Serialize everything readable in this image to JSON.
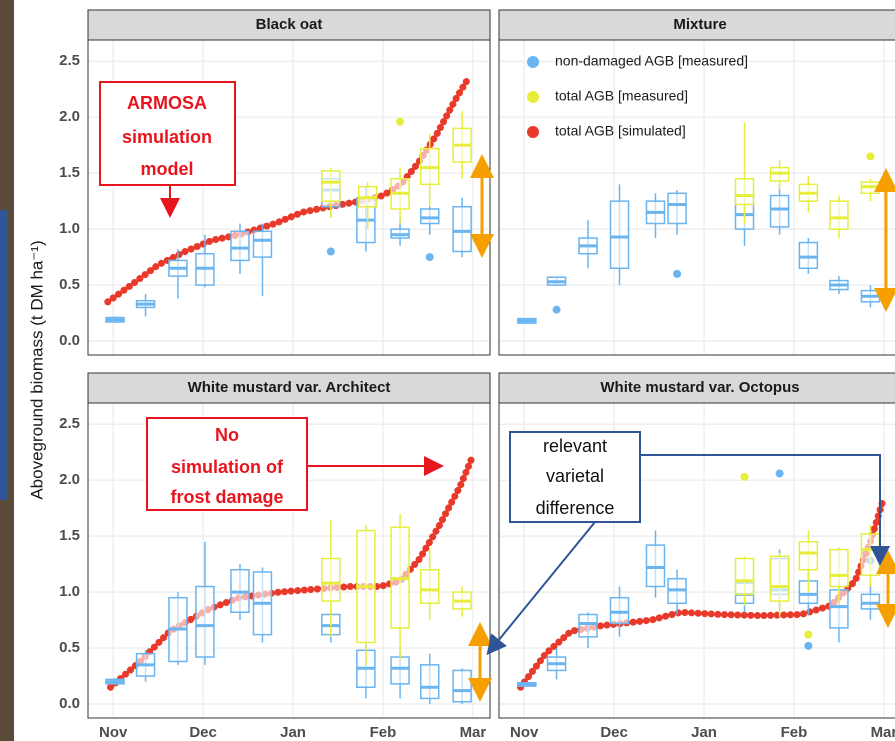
{
  "chart_data": {
    "type": "boxplot",
    "y_label": "Aboveground biomass (t DM ha⁻¹)",
    "xlim": [
      10.72,
      15.19
    ],
    "xticks": [
      {
        "value": 11,
        "label": "Nov"
      },
      {
        "value": 12,
        "label": "Dec"
      },
      {
        "value": 13,
        "label": "Jan"
      },
      {
        "value": 14,
        "label": "Feb"
      },
      {
        "value": 15,
        "label": "Mar"
      }
    ],
    "ylim": [
      -0.125,
      2.69
    ],
    "yticks": [
      {
        "value": 0,
        "label": "0.0"
      },
      0.5,
      {
        "value": 1,
        "label": "1.0"
      },
      1.5,
      {
        "value": 2,
        "label": "2.0"
      },
      2.5
    ],
    "grid": true,
    "series": [
      {
        "name": "non-damaged AGB [measured]",
        "color": "#6ab4f0"
      },
      {
        "name": "total AGB [measured]",
        "color": "#e6ee3a"
      },
      {
        "name": "total AGB [simulated]",
        "color": "#e8392b"
      }
    ],
    "panels": [
      {
        "title": "Black oat",
        "boxes": [
          [
            {
              "x": 11.02,
              "low": 0.16,
              "q1": 0.17,
              "median": 0.19,
              "q3": 0.21,
              "high": 0.22,
              "outliers": []
            },
            {
              "x": 11.36,
              "low": 0.22,
              "q1": 0.3,
              "median": 0.33,
              "q3": 0.36,
              "high": 0.42,
              "outliers": []
            },
            {
              "x": 11.72,
              "low": 0.38,
              "q1": 0.58,
              "median": 0.65,
              "q3": 0.72,
              "high": 0.82,
              "outliers": []
            },
            {
              "x": 12.02,
              "low": 0.48,
              "q1": 0.5,
              "median": 0.65,
              "q3": 0.78,
              "high": 0.95,
              "outliers": []
            },
            {
              "x": 12.41,
              "low": 0.6,
              "q1": 0.72,
              "median": 0.83,
              "q3": 0.98,
              "high": 1.05,
              "outliers": []
            },
            {
              "x": 12.66,
              "low": 0.4,
              "q1": 0.75,
              "median": 0.9,
              "q3": 0.98,
              "high": 1.05,
              "outliers": []
            },
            {
              "x": 13.42,
              "low": 1.1,
              "q1": 1.2,
              "median": 1.35,
              "q3": 1.45,
              "high": 1.5,
              "outliers": [
                0.8
              ]
            },
            {
              "x": 13.81,
              "low": 0.8,
              "q1": 0.88,
              "median": 1.08,
              "q3": 1.28,
              "high": 1.38,
              "outliers": []
            },
            {
              "x": 14.19,
              "low": 0.85,
              "q1": 0.92,
              "median": 0.95,
              "q3": 1.0,
              "high": 1.1,
              "outliers": []
            },
            {
              "x": 14.52,
              "low": 0.95,
              "q1": 1.05,
              "median": 1.1,
              "q3": 1.18,
              "high": 1.25,
              "outliers": [
                0.75
              ]
            },
            {
              "x": 14.88,
              "low": 0.75,
              "q1": 0.8,
              "median": 0.98,
              "q3": 1.2,
              "high": 1.28,
              "outliers": []
            }
          ],
          [
            {
              "x": 13.42,
              "low": 1.1,
              "q1": 1.25,
              "median": 1.42,
              "q3": 1.52,
              "high": 1.55,
              "outliers": []
            },
            {
              "x": 13.83,
              "low": 1.0,
              "q1": 1.2,
              "median": 1.28,
              "q3": 1.38,
              "high": 1.42,
              "outliers": []
            },
            {
              "x": 14.19,
              "low": 1.05,
              "q1": 1.18,
              "median": 1.32,
              "q3": 1.45,
              "high": 1.55,
              "outliers": [
                1.96
              ]
            },
            {
              "x": 14.52,
              "low": 1.2,
              "q1": 1.4,
              "median": 1.55,
              "q3": 1.72,
              "high": 1.85,
              "outliers": []
            },
            {
              "x": 14.88,
              "low": 1.45,
              "q1": 1.6,
              "median": 1.75,
              "q3": 1.9,
              "high": 2.05,
              "outliers": []
            }
          ]
        ],
        "simulated": {
          "x": [
            10.94,
            11.2,
            11.5,
            11.8,
            12.1,
            12.4,
            12.8,
            13.1,
            13.4,
            13.75,
            14.0,
            14.2,
            14.4,
            14.6,
            14.8,
            14.95
          ],
          "values": [
            0.35,
            0.5,
            0.68,
            0.8,
            0.9,
            0.95,
            1.05,
            1.15,
            1.2,
            1.25,
            1.3,
            1.4,
            1.6,
            1.85,
            2.15,
            2.35
          ]
        }
      },
      {
        "title": "Mixture",
        "boxes": [
          [
            {
              "x": 11.03,
              "low": 0.16,
              "q1": 0.16,
              "median": 0.18,
              "q3": 0.2,
              "high": 0.2,
              "outliers": []
            },
            {
              "x": 11.36,
              "low": 0.5,
              "q1": 0.5,
              "median": 0.53,
              "q3": 0.57,
              "high": 0.57,
              "outliers": [
                0.28
              ]
            },
            {
              "x": 11.71,
              "low": 0.65,
              "q1": 0.78,
              "median": 0.85,
              "q3": 0.92,
              "high": 1.08,
              "outliers": []
            },
            {
              "x": 12.06,
              "low": 0.5,
              "q1": 0.65,
              "median": 0.93,
              "q3": 1.25,
              "high": 1.4,
              "outliers": []
            },
            {
              "x": 12.46,
              "low": 0.92,
              "q1": 1.05,
              "median": 1.15,
              "q3": 1.25,
              "high": 1.32,
              "outliers": []
            },
            {
              "x": 12.7,
              "low": 0.95,
              "q1": 1.05,
              "median": 1.22,
              "q3": 1.32,
              "high": 1.35,
              "outliers": [
                0.6
              ]
            },
            {
              "x": 13.45,
              "low": 0.85,
              "q1": 1.0,
              "median": 1.13,
              "q3": 1.3,
              "high": 1.42,
              "outliers": []
            },
            {
              "x": 13.84,
              "low": 0.95,
              "q1": 1.02,
              "median": 1.18,
              "q3": 1.3,
              "high": 1.4,
              "outliers": []
            },
            {
              "x": 14.16,
              "low": 0.6,
              "q1": 0.65,
              "median": 0.75,
              "q3": 0.88,
              "high": 0.92,
              "outliers": []
            },
            {
              "x": 14.5,
              "low": 0.42,
              "q1": 0.46,
              "median": 0.5,
              "q3": 0.54,
              "high": 0.58,
              "outliers": []
            },
            {
              "x": 14.85,
              "low": 0.3,
              "q1": 0.35,
              "median": 0.4,
              "q3": 0.45,
              "high": 0.5,
              "outliers": []
            }
          ],
          [
            {
              "x": 13.45,
              "low": 1.05,
              "q1": 1.22,
              "median": 1.3,
              "q3": 1.45,
              "high": 1.95,
              "outliers": []
            },
            {
              "x": 13.84,
              "low": 1.35,
              "q1": 1.43,
              "median": 1.5,
              "q3": 1.55,
              "high": 1.62,
              "outliers": []
            },
            {
              "x": 14.16,
              "low": 1.15,
              "q1": 1.25,
              "median": 1.32,
              "q3": 1.4,
              "high": 1.48,
              "outliers": []
            },
            {
              "x": 14.5,
              "low": 0.92,
              "q1": 1.0,
              "median": 1.1,
              "q3": 1.25,
              "high": 1.3,
              "outliers": []
            },
            {
              "x": 14.85,
              "low": 1.25,
              "q1": 1.32,
              "median": 1.38,
              "q3": 1.42,
              "high": 1.45,
              "outliers": [
                1.65
              ]
            }
          ]
        ]
      },
      {
        "title": "White mustard var. Architect",
        "boxes": [
          [
            {
              "x": 11.02,
              "low": 0.17,
              "q1": 0.18,
              "median": 0.2,
              "q3": 0.22,
              "high": 0.23,
              "outliers": []
            },
            {
              "x": 11.36,
              "low": 0.2,
              "q1": 0.25,
              "median": 0.35,
              "q3": 0.45,
              "high": 0.48,
              "outliers": []
            },
            {
              "x": 11.72,
              "low": 0.35,
              "q1": 0.38,
              "median": 0.67,
              "q3": 0.95,
              "high": 1.0,
              "outliers": []
            },
            {
              "x": 12.02,
              "low": 0.35,
              "q1": 0.42,
              "median": 0.7,
              "q3": 1.05,
              "high": 1.45,
              "outliers": []
            },
            {
              "x": 12.41,
              "low": 0.75,
              "q1": 0.82,
              "median": 1.0,
              "q3": 1.2,
              "high": 1.25,
              "outliers": []
            },
            {
              "x": 12.66,
              "low": 0.55,
              "q1": 0.62,
              "median": 0.9,
              "q3": 1.18,
              "high": 1.22,
              "outliers": []
            },
            {
              "x": 13.42,
              "low": 0.55,
              "q1": 0.62,
              "median": 0.7,
              "q3": 0.8,
              "high": 0.85,
              "outliers": []
            },
            {
              "x": 13.81,
              "low": 0.05,
              "q1": 0.15,
              "median": 0.32,
              "q3": 0.48,
              "high": 0.58,
              "outliers": []
            },
            {
              "x": 14.19,
              "low": 0.05,
              "q1": 0.18,
              "median": 0.32,
              "q3": 0.42,
              "high": 0.48,
              "outliers": []
            },
            {
              "x": 14.52,
              "low": 0,
              "q1": 0.05,
              "median": 0.15,
              "q3": 0.35,
              "high": 0.45,
              "outliers": []
            },
            {
              "x": 14.88,
              "low": 0,
              "q1": 0.02,
              "median": 0.12,
              "q3": 0.3,
              "high": 0.32,
              "outliers": []
            }
          ],
          [
            {
              "x": 13.42,
              "low": 0.6,
              "q1": 0.92,
              "median": 1.08,
              "q3": 1.3,
              "high": 1.65,
              "outliers": []
            },
            {
              "x": 13.81,
              "low": 0.35,
              "q1": 0.55,
              "median": 1.05,
              "q3": 1.55,
              "high": 1.6,
              "outliers": []
            },
            {
              "x": 14.19,
              "low": 0.4,
              "q1": 0.68,
              "median": 1.12,
              "q3": 1.58,
              "high": 1.7,
              "outliers": []
            },
            {
              "x": 14.52,
              "low": 0.75,
              "q1": 0.9,
              "median": 1.02,
              "q3": 1.2,
              "high": 1.4,
              "outliers": []
            },
            {
              "x": 14.88,
              "low": 0.78,
              "q1": 0.85,
              "median": 0.92,
              "q3": 1.0,
              "high": 1.05,
              "outliers": []
            }
          ]
        ],
        "simulated": {
          "x": [
            10.97,
            11.3,
            11.63,
            12.07,
            12.4,
            12.85,
            13.3,
            13.63,
            13.97,
            14.19,
            14.41,
            14.63,
            14.86,
            14.99
          ],
          "values": [
            0.15,
            0.38,
            0.65,
            0.85,
            0.95,
            1.0,
            1.03,
            1.05,
            1.05,
            1.1,
            1.3,
            1.6,
            1.95,
            2.2
          ]
        }
      },
      {
        "title": "White mustard var. Octopus",
        "boxes": [
          [
            {
              "x": 11.03,
              "low": 0.16,
              "q1": 0.16,
              "median": 0.17,
              "q3": 0.19,
              "high": 0.19,
              "outliers": []
            },
            {
              "x": 11.36,
              "low": 0.22,
              "q1": 0.3,
              "median": 0.36,
              "q3": 0.42,
              "high": 0.5,
              "outliers": []
            },
            {
              "x": 11.71,
              "low": 0.5,
              "q1": 0.6,
              "median": 0.72,
              "q3": 0.8,
              "high": 0.82,
              "outliers": []
            },
            {
              "x": 12.06,
              "low": 0.6,
              "q1": 0.72,
              "median": 0.82,
              "q3": 0.95,
              "high": 1.05,
              "outliers": []
            },
            {
              "x": 12.46,
              "low": 0.95,
              "q1": 1.05,
              "median": 1.22,
              "q3": 1.42,
              "high": 1.55,
              "outliers": []
            },
            {
              "x": 12.7,
              "low": 0.8,
              "q1": 0.9,
              "median": 1.02,
              "q3": 1.12,
              "high": 1.2,
              "outliers": []
            },
            {
              "x": 13.45,
              "low": 0.82,
              "q1": 0.9,
              "median": 0.98,
              "q3": 1.08,
              "high": 1.12,
              "outliers": []
            },
            {
              "x": 13.84,
              "low": 0.85,
              "q1": 0.98,
              "median": 1.02,
              "q3": 1.3,
              "high": 1.38,
              "outliers": [
                2.06
              ]
            },
            {
              "x": 14.16,
              "low": 0.8,
              "q1": 0.9,
              "median": 0.98,
              "q3": 1.1,
              "high": 1.2,
              "outliers": [
                0.52
              ]
            },
            {
              "x": 14.5,
              "low": 0.55,
              "q1": 0.68,
              "median": 0.87,
              "q3": 1.02,
              "high": 1.1,
              "outliers": []
            },
            {
              "x": 14.85,
              "low": 0.75,
              "q1": 0.85,
              "median": 0.9,
              "q3": 0.98,
              "high": 1.1,
              "outliers": [
                1.28
              ]
            }
          ],
          [
            {
              "x": 13.45,
              "low": 0.88,
              "q1": 0.98,
              "median": 1.1,
              "q3": 1.3,
              "high": 1.32,
              "outliers": [
                2.03
              ]
            },
            {
              "x": 13.84,
              "low": 0.78,
              "q1": 0.92,
              "median": 1.05,
              "q3": 1.32,
              "high": 1.35,
              "outliers": []
            },
            {
              "x": 14.16,
              "low": 1.0,
              "q1": 1.2,
              "median": 1.35,
              "q3": 1.45,
              "high": 1.55,
              "outliers": [
                0.62
              ]
            },
            {
              "x": 14.5,
              "low": 0.9,
              "q1": 1.05,
              "median": 1.15,
              "q3": 1.38,
              "high": 1.4,
              "outliers": []
            },
            {
              "x": 14.85,
              "low": 1.05,
              "q1": 1.15,
              "median": 1.38,
              "q3": 1.52,
              "high": 1.6,
              "outliers": []
            }
          ]
        ],
        "simulated": {
          "x": [
            10.96,
            11.24,
            11.52,
            11.86,
            12.41,
            12.74,
            13.19,
            13.63,
            14.08,
            14.41,
            14.68,
            14.85,
            14.99
          ],
          "values": [
            0.15,
            0.45,
            0.65,
            0.7,
            0.75,
            0.82,
            0.8,
            0.79,
            0.8,
            0.88,
            1.1,
            1.45,
            1.82
          ]
        }
      }
    ],
    "annotations": [
      {
        "lines": [
          "ARMOSA",
          "simulation",
          "model"
        ]
      },
      {
        "lines": [
          "No",
          "simulation of",
          "frost damage"
        ]
      },
      {
        "lines": [
          "relevant",
          "varietal",
          "difference"
        ]
      }
    ]
  }
}
